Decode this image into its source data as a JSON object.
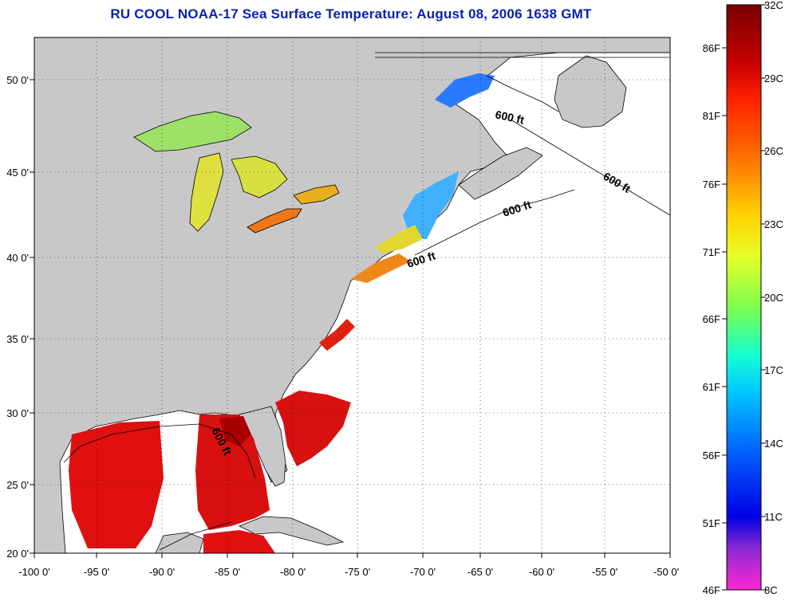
{
  "title": "RU COOL  NOAA-17  Sea Surface Temperature:  August 08, 2006 1638 GMT",
  "axes": {
    "x_ticks": [
      "-100 0'",
      "-95 0'",
      "-90 0'",
      "-85 0'",
      "-80 0'",
      "-75 0'",
      "-70 0'",
      "-65 0'",
      "-60 0'",
      "-55 0'",
      "-50 0'"
    ],
    "y_ticks": [
      "50 0'",
      "45 0'",
      "40 0'",
      "35 0'",
      "30 0'",
      "25 0'",
      "20 0'"
    ]
  },
  "isobath_labels": [
    "600 ft",
    "600 ft",
    "600 ft",
    "600 ft",
    "600 ft"
  ],
  "colorbar": {
    "celsius_ticks": [
      "32C",
      "29C",
      "26C",
      "23C",
      "20C",
      "17C",
      "14C",
      "11C",
      "8C"
    ],
    "fahrenheit_ticks": [
      "86F",
      "81F",
      "76F",
      "71F",
      "66F",
      "61F",
      "56F",
      "51F",
      "46F"
    ],
    "colors": [
      "#7a0000",
      "#c80000",
      "#ff2000",
      "#ff7800",
      "#ffd200",
      "#e6ff28",
      "#78ff50",
      "#14ffd2",
      "#00c8ff",
      "#0064ff",
      "#0000e6",
      "#8c28d2",
      "#ff28d2"
    ]
  },
  "map_colors": {
    "land": "#c8c8c8",
    "ocean_no_data": "#ffffff",
    "gulf_warm": "#e01010",
    "gulf_hot": "#b00000",
    "shelf_orange": "#f07818",
    "lakes_yellow": "#d8e040",
    "lakes_cyan": "#40d8e8",
    "gulf_of_maine": "#20a0ff"
  }
}
